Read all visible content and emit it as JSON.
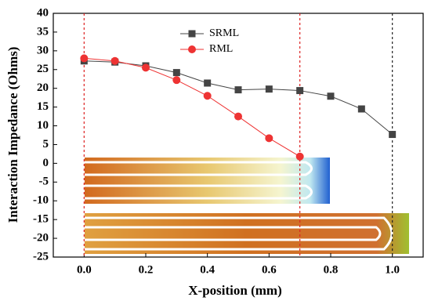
{
  "chart_data": {
    "type": "line",
    "xlabel": "X-position (mm)",
    "ylabel": "Interaction Impedance (Ohms)",
    "x": [
      0.0,
      0.1,
      0.2,
      0.3,
      0.4,
      0.5,
      0.6,
      0.7,
      0.8,
      0.9,
      1.0
    ],
    "series": [
      {
        "name": "SRML",
        "color": "#444444",
        "marker": "square",
        "values": [
          27.3,
          27,
          26,
          24.2,
          21.4,
          19.6,
          19.8,
          19.4,
          17.9,
          14.5,
          7.7
        ]
      },
      {
        "name": "RML",
        "color": "#ee3333",
        "marker": "circle",
        "values": [
          28,
          27.3,
          25.5,
          22.2,
          18,
          12.5,
          6.7,
          1.8,
          null,
          null,
          null
        ]
      }
    ],
    "xlim": [
      -0.1,
      1.1
    ],
    "xticks": [
      {
        "value": 0,
        "label": "0.0"
      },
      0.2,
      0.4,
      0.6,
      0.8,
      {
        "value": 1,
        "label": "1.0"
      }
    ],
    "ylim": [
      -25,
      40
    ],
    "yticks": [
      -25,
      -20,
      -15,
      -10,
      -5,
      0,
      5,
      10,
      15,
      20,
      25,
      30,
      35,
      40
    ],
    "vlines": [
      {
        "value": 0,
        "color": "#dd2222"
      },
      {
        "value": 0.7,
        "color": "#dd2222"
      },
      {
        "value": 1,
        "color": "#222222"
      }
    ],
    "legend": "top"
  }
}
